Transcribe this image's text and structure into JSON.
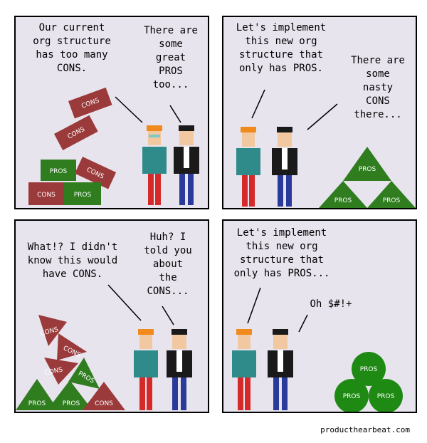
{
  "panels": [
    {
      "left_speech": "Our current\norg structure\nhas too many\nCONS.",
      "right_speech": "There are\nsome\ngreat\nPROS\ntoo..."
    },
    {
      "left_speech": "Let's implement\nthis new org\nstructure that\nonly has PROS.",
      "right_speech": "There are\nsome\nnasty\nCONS\nthere..."
    },
    {
      "left_speech": "What!? I didn't\nknow this would\nhave CONS.",
      "right_speech": "Huh? I\ntold you\nabout\nthe\nCONS..."
    },
    {
      "left_speech": "Let's implement\nthis new org\nstructure that\nonly has PROS...",
      "right_speech": "Oh $#!+"
    }
  ],
  "labels": {
    "cons": "CONS",
    "pros": "PROS"
  },
  "credit": "producthearbeat.com",
  "colors": {
    "cons": "#9b3a3a",
    "pros": "#2f7d1f",
    "panel_bg": "#e8e4ee"
  }
}
